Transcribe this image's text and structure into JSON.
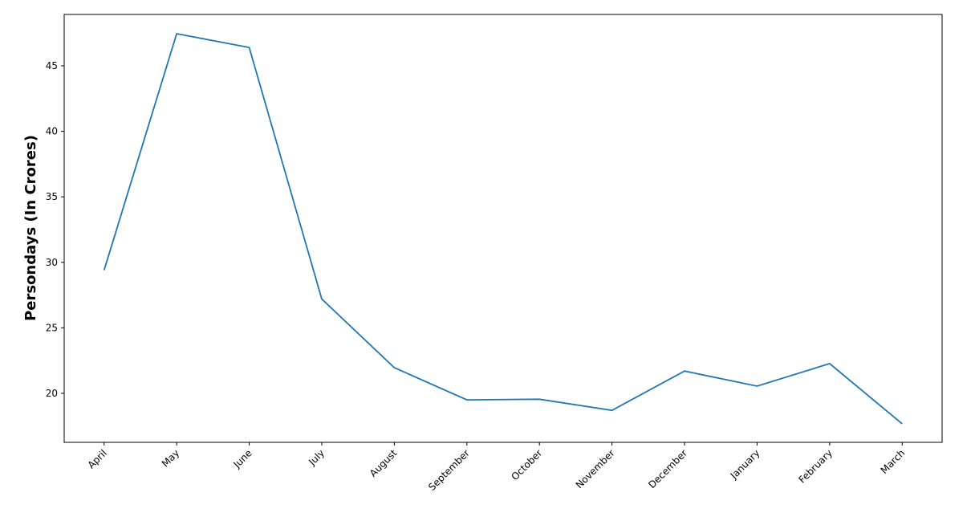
{
  "chart_data": {
    "type": "line",
    "y_label": "Persondays (In Crores)",
    "categories": [
      "April",
      "May",
      "June",
      "July",
      "August",
      "September",
      "October",
      "November",
      "December",
      "January",
      "February",
      "March"
    ],
    "series": [
      {
        "name": null,
        "color": "#1f77b4",
        "values": [
          29.4,
          47.45,
          46.4,
          27.2,
          21.96,
          19.5,
          19.55,
          18.7,
          21.7,
          20.55,
          22.27,
          17.67
        ]
      }
    ],
    "ylim": [
      16.26,
      48.92
    ],
    "yticks": [
      20,
      25,
      30,
      35,
      40,
      45
    ],
    "grid": false
  }
}
